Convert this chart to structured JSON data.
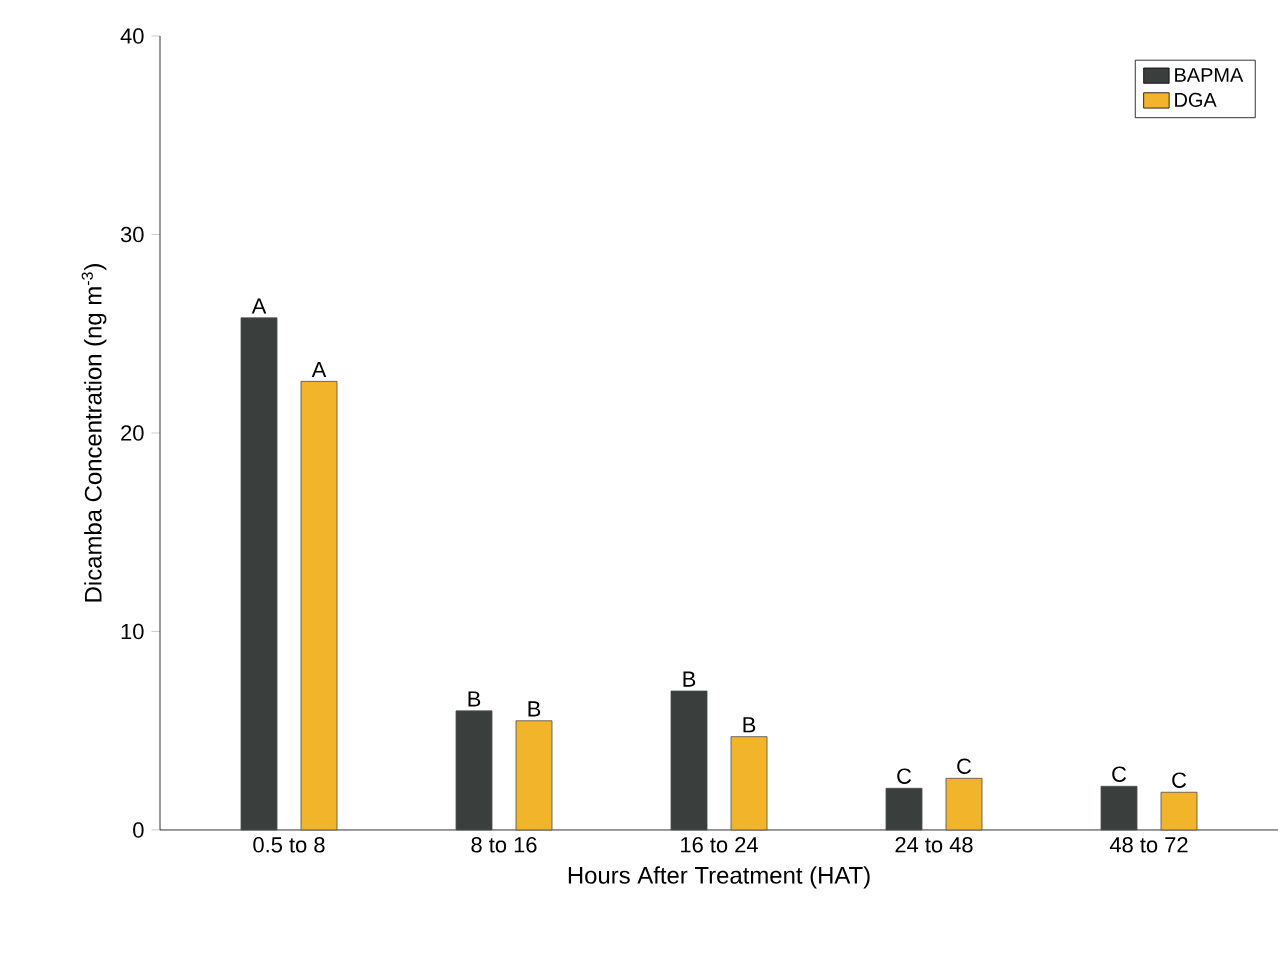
{
  "chart_data": {
    "type": "bar",
    "xlabel": "Hours After Treatment (HAT)",
    "ylabel": "Dicamba Concentration (ng m$^{-3}$)",
    "categories": [
      "0.5 to 8",
      "8 to 16",
      "16 to 24",
      "24 to 48",
      "48 to 72"
    ],
    "series": [
      {
        "name": "BAPMA",
        "color": "#3a3f3e",
        "values": [
          25.8,
          6.0,
          7.0,
          2.1,
          2.2
        ],
        "value_labels": [
          "A",
          "B",
          "B",
          "C",
          "C"
        ]
      },
      {
        "name": "DGA",
        "color": "#f2b42b",
        "values": [
          22.6,
          5.5,
          4.7,
          2.6,
          1.9
        ],
        "value_labels": [
          "A",
          "B",
          "B",
          "C",
          "C"
        ]
      }
    ],
    "ylim": [
      0,
      40
    ],
    "yticks": [
      0,
      10,
      20,
      30,
      40
    ],
    "grid": false,
    "legend": "top right"
  }
}
